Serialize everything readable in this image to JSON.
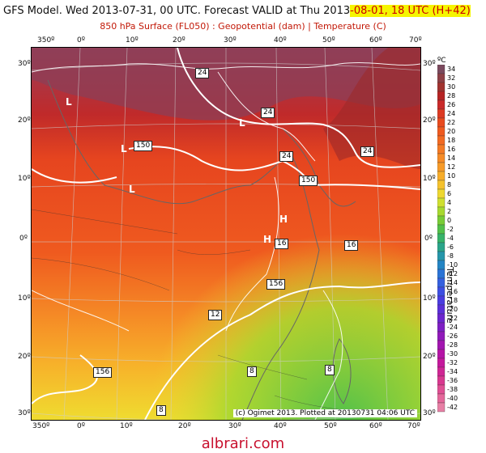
{
  "header": {
    "title_prefix": "GFS Model. Wed 2013-07-31, 00 UTC. Forecast VALID at Thu 2013",
    "title_highlight": "-08-01, 18 UTC (H+42)",
    "subtitle": "850 hPa Surface (FL050) : Geopotential (dam) | Temperature (C)"
  },
  "axes": {
    "lon_labels": [
      "350º",
      "0º",
      "10º",
      "20º",
      "30º",
      "40º",
      "50º",
      "60º",
      "70º"
    ],
    "lat_labels": [
      "30º",
      "20º",
      "10º",
      "0º",
      "10º",
      "20º",
      "30º"
    ]
  },
  "colorbar": {
    "unit": "ºC",
    "title": "Temperature",
    "ticks": [
      "34",
      "32",
      "30",
      "28",
      "26",
      "24",
      "22",
      "20",
      "18",
      "16",
      "14",
      "12",
      "10",
      "8",
      "6",
      "4",
      "2",
      "0",
      "-2",
      "-4",
      "-6",
      "-8",
      "-10",
      "-12",
      "-14",
      "-16",
      "-18",
      "-20",
      "-22",
      "-24",
      "-26",
      "-28",
      "-30",
      "-32",
      "-34",
      "-36",
      "-38",
      "-40",
      "-42"
    ],
    "colors": [
      "#7b4a5e",
      "#8e4046",
      "#a1332f",
      "#b52424",
      "#c92a2a",
      "#dc3a22",
      "#e84a1e",
      "#ef5a1f",
      "#f26a22",
      "#f47a24",
      "#f68b27",
      "#f79b29",
      "#f7ad2a",
      "#f5c22d",
      "#eed830",
      "#cfe030",
      "#a7d92f",
      "#78cc36",
      "#52c04a",
      "#37b36a",
      "#2aa58a",
      "#2596aa",
      "#2485c4",
      "#2a73d6",
      "#3460df",
      "#3d4ee2",
      "#4a3ce0",
      "#5a2fd8",
      "#6c25ce",
      "#7e1ec4",
      "#9019ba",
      "#a215b0",
      "#b513a6",
      "#c4189c",
      "#cf2694",
      "#d8388f",
      "#df4f93",
      "#e4679a",
      "#e77fa5"
    ]
  },
  "map_labels": {
    "contours": [
      "24",
      "24",
      "24",
      "24",
      "150",
      "150",
      "16",
      "16",
      "156",
      "156",
      "12",
      "8",
      "8",
      "8"
    ],
    "lows": [
      "L",
      "L",
      "L",
      "L",
      "H",
      "H"
    ]
  },
  "credit": "(c) Ogimet 2013. Plotted at 20130731 04:06 UTC",
  "watermark": "albrari.com"
}
